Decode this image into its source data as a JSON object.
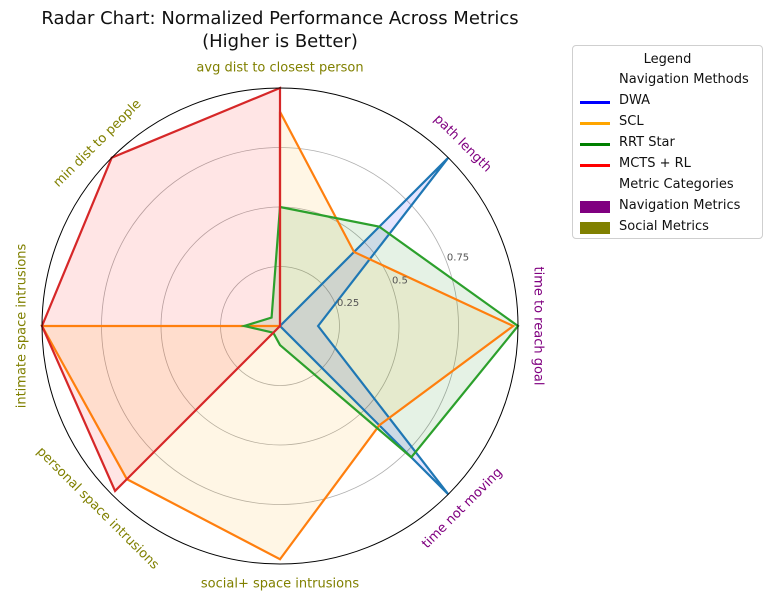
{
  "chart_data": {
    "type": "radar",
    "title_lines": [
      "Radar Chart: Normalized Performance Across Metrics",
      "(Higher is Better)"
    ],
    "axes": [
      {
        "label": "time to reach goal",
        "category": "Navigation Metrics"
      },
      {
        "label": "path length",
        "category": "Navigation Metrics"
      },
      {
        "label": "avg dist to closest person",
        "category": "Social Metrics"
      },
      {
        "label": "min dist to people",
        "category": "Social Metrics"
      },
      {
        "label": "intimate space intrusions",
        "category": "Social Metrics"
      },
      {
        "label": "personal space intrusions",
        "category": "Social Metrics"
      },
      {
        "label": "social+ space intrusions",
        "category": "Social Metrics"
      },
      {
        "label": "time not moving",
        "category": "Navigation Metrics"
      }
    ],
    "radial_range": [
      0,
      1
    ],
    "radial_ticks": [
      0.25,
      0.5,
      0.75
    ],
    "radial_tick_labels": [
      "0.25",
      "0.5",
      "0.75"
    ],
    "grid": true,
    "series": [
      {
        "name": "DWA",
        "color": "#1f77b4",
        "fill": "#0000ff",
        "fill_opacity": 0.1,
        "values": [
          0.16,
          1.0,
          0.0,
          0.0,
          0.0,
          0.0,
          0.0,
          1.0
        ]
      },
      {
        "name": "SCL",
        "color": "#ff7f0e",
        "fill": "#ffa500",
        "fill_opacity": 0.1,
        "values": [
          0.98,
          0.44,
          0.9,
          0.0,
          1.0,
          0.91,
          0.98,
          0.59
        ]
      },
      {
        "name": "RRT Star",
        "color": "#2ca02c",
        "fill": "#008000",
        "fill_opacity": 0.1,
        "values": [
          1.0,
          0.59,
          0.5,
          0.05,
          0.15,
          0.04,
          0.08,
          0.78
        ]
      },
      {
        "name": "MCTS + RL",
        "color": "#d62728",
        "fill": "#ff0000",
        "fill_opacity": 0.1,
        "values": [
          0.0,
          0.0,
          1.0,
          1.0,
          1.0,
          0.98,
          0.0,
          0.0
        ]
      }
    ],
    "category_colors": {
      "Navigation Metrics": "#800080",
      "Social Metrics": "#808000"
    },
    "legend": {
      "title": "Legend",
      "placement": "outside-top-right",
      "entries": [
        {
          "label": "Navigation Methods",
          "kind": "header"
        },
        {
          "label": "DWA",
          "kind": "line",
          "color": "#0000ff"
        },
        {
          "label": "SCL",
          "kind": "line",
          "color": "#ffa500"
        },
        {
          "label": "RRT Star",
          "kind": "line",
          "color": "#008000"
        },
        {
          "label": "MCTS + RL",
          "kind": "line",
          "color": "#ff0000"
        },
        {
          "label": "Metric Categories",
          "kind": "header"
        },
        {
          "label": "Navigation Metrics",
          "kind": "box",
          "color": "#800080"
        },
        {
          "label": "Social Metrics",
          "kind": "box",
          "color": "#808000"
        }
      ]
    }
  }
}
